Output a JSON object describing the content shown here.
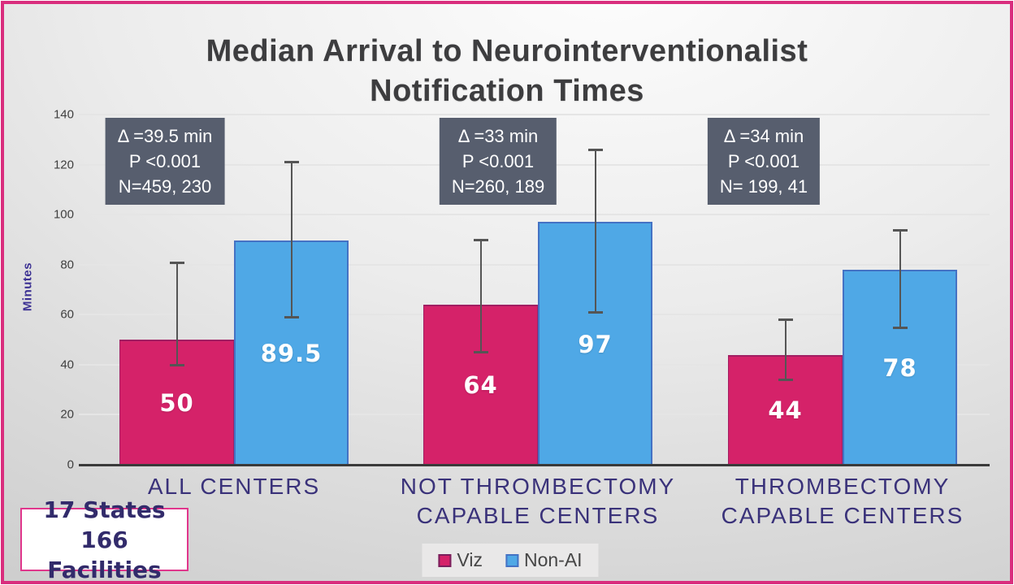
{
  "chart_data": {
    "type": "bar",
    "title": "Median Arrival to Neurointerventionalist Notification Times",
    "title_lines": [
      "Median Arrival to Neurointerventionalist",
      "Notification Times"
    ],
    "xlabel": "",
    "ylabel": "Minutes",
    "ylim": [
      0,
      140
    ],
    "yticks": [
      0,
      20,
      40,
      60,
      80,
      100,
      120,
      140
    ],
    "grid": true,
    "legend_position": "bottom-center",
    "categories": [
      "ALL CENTERS",
      "NOT THROMBECTOMY CAPABLE CENTERS",
      "THROMBECTOMY CAPABLE CENTERS"
    ],
    "category_lines": [
      [
        "ALL CENTERS"
      ],
      [
        "NOT THROMBECTOMY",
        "CAPABLE CENTERS"
      ],
      [
        "THROMBECTOMY",
        "CAPABLE CENTERS"
      ]
    ],
    "series": [
      {
        "name": "Viz",
        "color": "#d52269",
        "border_color": "#7a1f5c",
        "values": [
          50,
          64,
          44
        ],
        "error_bars_min_max": [
          [
            40,
            81
          ],
          [
            45,
            90
          ],
          [
            34,
            58
          ]
        ]
      },
      {
        "name": "Non-AI",
        "color": "#4fa8e6",
        "border_color": "#4472c4",
        "values": [
          89.5,
          97,
          78
        ],
        "error_bars_min_max": [
          [
            59,
            121
          ],
          [
            61,
            126
          ],
          [
            55,
            94
          ]
        ]
      }
    ],
    "annotations": [
      {
        "lines": [
          "Δ =39.5 min",
          "P <0.001",
          "N=459, 230"
        ]
      },
      {
        "lines": [
          "Δ =33 min",
          "P <0.001",
          "N=260, 189"
        ]
      },
      {
        "lines": [
          "Δ =34 min",
          "P <0.001",
          "N= 199, 41"
        ]
      }
    ]
  },
  "stats_box": {
    "line1": "17 States",
    "line2": "166 Facilities"
  },
  "colors": {
    "frame_border": "#d92d7d",
    "viz_bar": "#d52269",
    "non_ai_bar": "#4fa8e6",
    "annotation_bg": "#575e6e",
    "annotation_text": "#ffffff",
    "title_text": "#3d3d3f",
    "category_text": "#3a327a",
    "ylabel_text": "#3c3193",
    "stats_text": "#322b6b",
    "error_bar": "#555555"
  }
}
